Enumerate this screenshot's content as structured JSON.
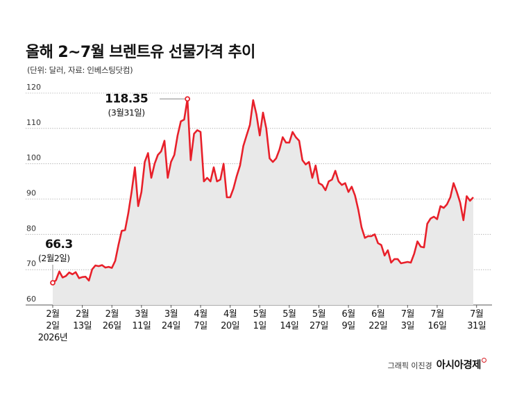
{
  "title": "올해 2~7월 브렌트유 선물가격 추이",
  "subtitle": "(단위: 달러, 자료: 인베스팅닷컴)",
  "credit": {
    "graphic": "그래픽 이진경",
    "brand": "아시아경제"
  },
  "colors": {
    "line": "#e8202a",
    "area": "#e9e9e9",
    "grid": "#9a9a9a"
  },
  "chart_data": {
    "type": "area",
    "title": "올해 2~7월 브렌트유 선물가격 추이",
    "ylabel": "",
    "xlabel": "",
    "ylim": [
      60,
      120
    ],
    "yticks": [
      60,
      70,
      80,
      90,
      100,
      110,
      120
    ],
    "grid": true,
    "x_ticks": [
      {
        "month": "2월",
        "day": "2일",
        "index": 0
      },
      {
        "month": "2월",
        "day": "13일",
        "index": 9
      },
      {
        "month": "2월",
        "day": "26일",
        "index": 18
      },
      {
        "month": "3월",
        "day": "11일",
        "index": 27
      },
      {
        "month": "3월",
        "day": "24일",
        "index": 36
      },
      {
        "month": "4월",
        "day": "7일",
        "index": 45
      },
      {
        "month": "4월",
        "day": "20일",
        "index": 54
      },
      {
        "month": "5월",
        "day": "1일",
        "index": 63
      },
      {
        "month": "5월",
        "day": "14일",
        "index": 72
      },
      {
        "month": "5월",
        "day": "27일",
        "index": 81
      },
      {
        "month": "6월",
        "day": "9일",
        "index": 90
      },
      {
        "month": "6월",
        "day": "22일",
        "index": 99
      },
      {
        "month": "7월",
        "day": "3일",
        "index": 108
      },
      {
        "month": "7월",
        "day": "16일",
        "index": 117
      },
      {
        "month": "7월",
        "day": "31일",
        "index": 129
      }
    ],
    "year_label": "2026년",
    "series": [
      {
        "values": [
          66.3,
          67.0,
          69.5,
          67.8,
          68.2,
          69.2,
          68.7,
          69.3,
          67.6,
          67.9,
          68.0,
          66.9,
          70.1,
          71.2,
          71.0,
          71.3,
          70.6,
          70.8,
          70.5,
          72.5,
          77.0,
          81.0,
          81.2,
          86.0,
          92.0,
          99.0,
          88.0,
          92.0,
          100.5,
          103.0,
          96.0,
          100.0,
          102.5,
          103.5,
          106.5,
          96.0,
          100.5,
          102.5,
          108.0,
          112.0,
          112.5,
          118.35,
          101.0,
          108.5,
          109.5,
          109.0,
          95.0,
          96.0,
          95.0,
          99.0,
          95.0,
          95.5,
          100.0,
          90.5,
          90.5,
          93.0,
          96.5,
          99.5,
          105.0,
          108.0,
          111.0,
          118.0,
          114.0,
          108.0,
          114.5,
          110.0,
          101.5,
          100.5,
          101.5,
          104.0,
          107.5,
          106.0,
          106.0,
          109.0,
          107.5,
          106.5,
          101.0,
          99.8,
          100.5,
          96.0,
          99.5,
          94.5,
          94.0,
          92.5,
          95.0,
          95.5,
          98.0,
          95.0,
          94.0,
          94.5,
          92.0,
          93.5,
          91.0,
          87.0,
          82.0,
          79.0,
          79.5,
          79.5,
          80.0,
          77.5,
          77.0,
          74.0,
          75.5,
          72.0,
          73.0,
          73.0,
          71.8,
          72.0,
          72.2,
          72.0,
          74.5,
          78.0,
          76.5,
          76.3,
          83.0,
          84.5,
          85.0,
          84.3,
          88.0,
          87.5,
          88.5,
          90.5,
          94.5,
          92.0,
          89.0,
          84.0,
          90.8,
          89.5,
          90.5
        ]
      }
    ],
    "annotations": [
      {
        "index": 0,
        "value_label": "66.3",
        "date_label": "(2월2일)"
      },
      {
        "index": 41,
        "value_label": "118.35",
        "date_label": "(3월31일)"
      }
    ]
  }
}
